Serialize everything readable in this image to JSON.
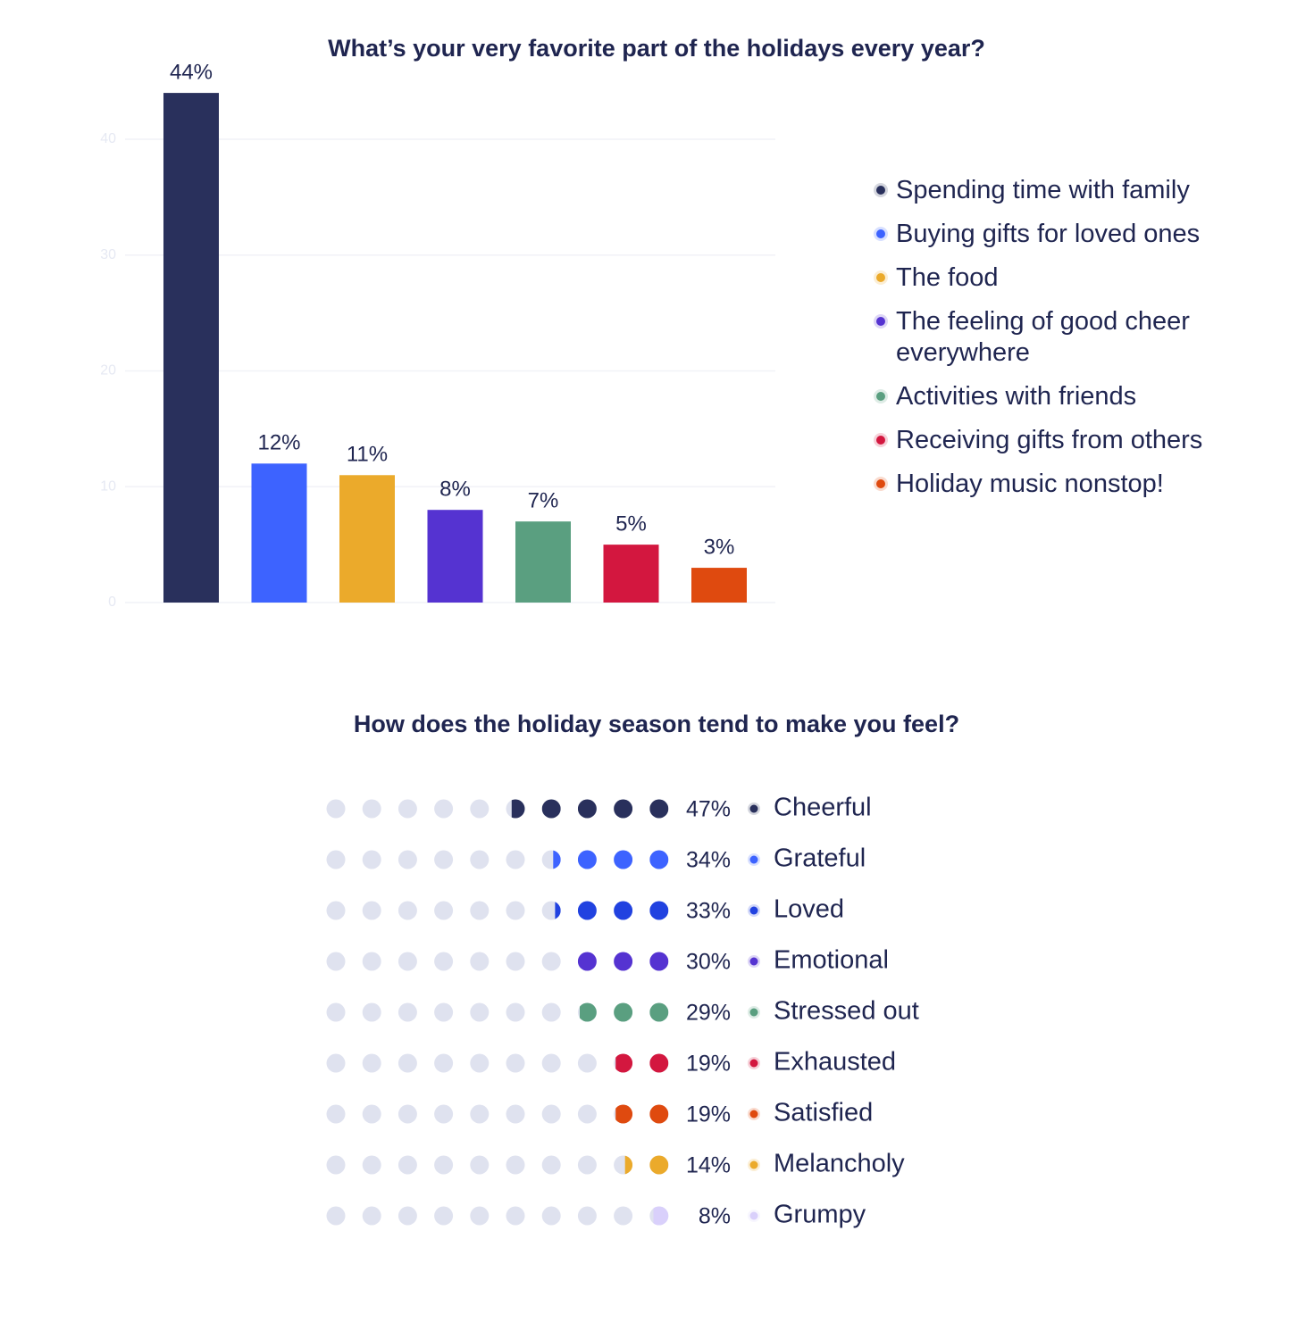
{
  "chart_data": [
    {
      "type": "bar",
      "title": "What’s your very favorite part of the holidays every year?",
      "categories": [
        "Spending time with family",
        "Buying gifts for loved ones",
        "The food",
        "The feeling of good cheer everywhere",
        "Activities with friends",
        "Receiving gifts from others",
        "Holiday music nonstop!"
      ],
      "values": [
        44,
        12,
        11,
        8,
        7,
        5,
        3
      ],
      "value_labels": [
        "44%",
        "12%",
        "11%",
        "8%",
        "7%",
        "5%",
        "3%"
      ],
      "colors": [
        "#29305c",
        "#3d63ff",
        "#ebaa2b",
        "#5533d1",
        "#5a9f80",
        "#d3173f",
        "#df4a0f"
      ],
      "ylim": [
        0,
        40
      ],
      "yticks": [
        0,
        10,
        20,
        30,
        40
      ],
      "grid": true,
      "legend": "right"
    },
    {
      "type": "dot_matrix",
      "title": "How does the holiday season tend to make you feel?",
      "categories": [
        "Cheerful",
        "Grateful",
        "Loved",
        "Emotional",
        "Stressed out",
        "Exhausted",
        "Satisfied",
        "Melancholy",
        "Grumpy"
      ],
      "values": [
        47,
        34,
        33,
        30,
        29,
        19,
        19,
        14,
        8
      ],
      "value_labels": [
        "47%",
        "34%",
        "33%",
        "30%",
        "29%",
        "19%",
        "19%",
        "14%",
        "8%"
      ],
      "colors": [
        "#29305c",
        "#3d63ff",
        "#2142e0",
        "#5533d1",
        "#5a9f80",
        "#d3173f",
        "#df4a0f",
        "#ebaa2b",
        "#d9d0fb"
      ]
    }
  ]
}
